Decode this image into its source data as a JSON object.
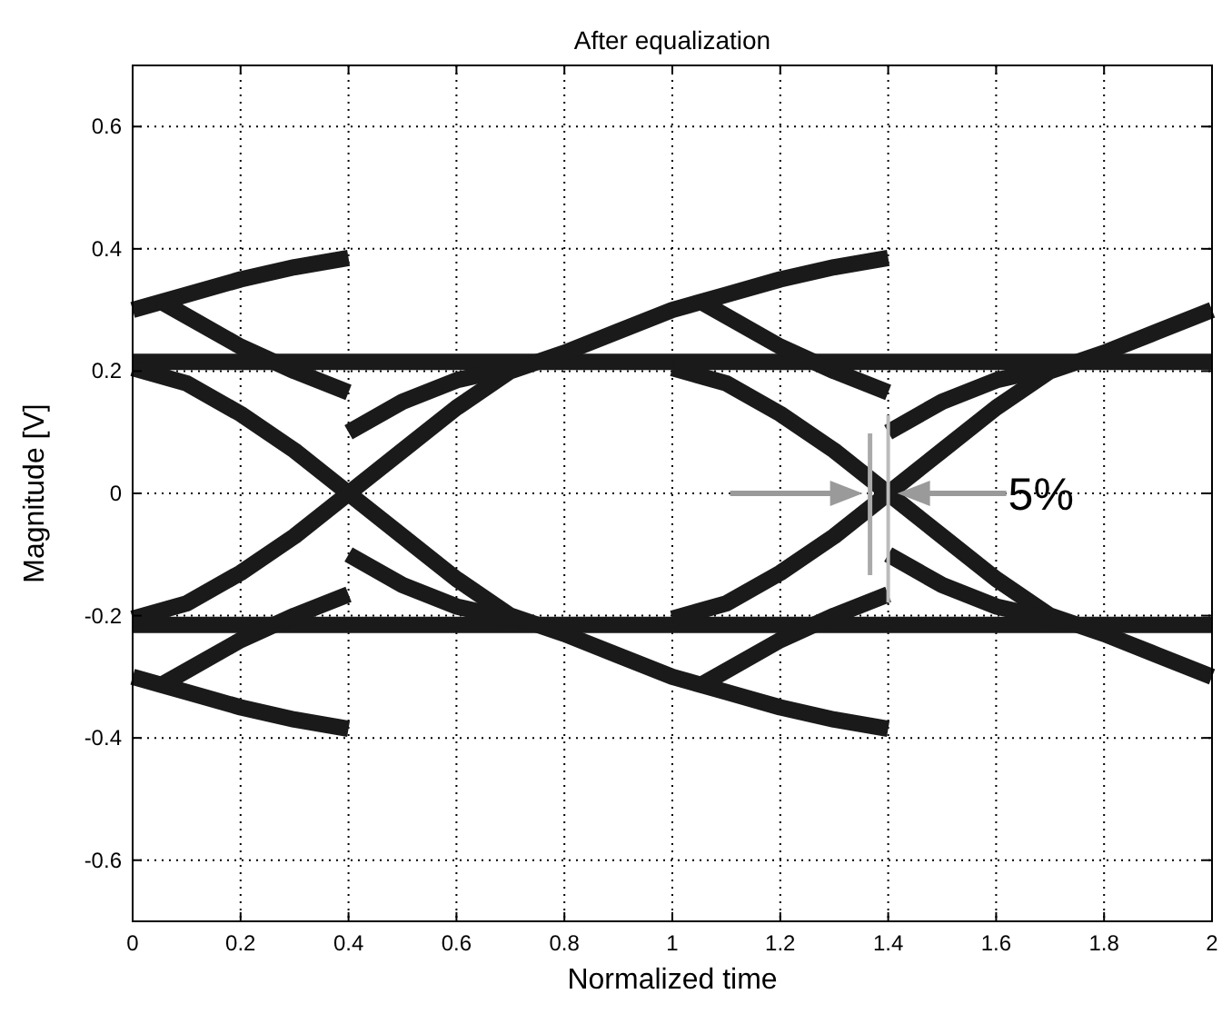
{
  "chart_data": {
    "type": "line",
    "title": "After equalization",
    "xlabel": "Normalized time",
    "ylabel": "Magnitude [V]",
    "xlim": [
      0,
      2
    ],
    "xticks": [
      0,
      0.2,
      0.4,
      0.6,
      0.8,
      1,
      1.2,
      1.4,
      1.6,
      1.8,
      2
    ],
    "ylim": [
      -0.7,
      0.7
    ],
    "yticks": [
      -0.6,
      -0.4,
      -0.2,
      0,
      0.2,
      0.4,
      0.6
    ],
    "grid": true,
    "line_style": "solid",
    "marker": "none",
    "annotations": [
      {
        "text": "5%",
        "x": 1.4,
        "y": 0
      }
    ],
    "series": [
      {
        "color": "#1a1a1a",
        "x": [
          0,
          2
        ],
        "values": [
          0.215,
          0.215
        ]
      },
      {
        "color": "#1a1a1a",
        "x": [
          0,
          2
        ],
        "values": [
          -0.215,
          -0.215
        ]
      },
      {
        "color": "#1a1a1a",
        "x": [
          0,
          0.1,
          0.2,
          0.3,
          0.4
        ],
        "values": [
          0.3,
          0.325,
          0.35,
          0.37,
          0.385
        ]
      },
      {
        "color": "#1a1a1a",
        "x": [
          0,
          0.1,
          0.2,
          0.3,
          0.4
        ],
        "values": [
          -0.3,
          -0.325,
          -0.35,
          -0.37,
          -0.385
        ]
      },
      {
        "color": "#1a1a1a",
        "x": [
          0,
          0.1,
          0.2,
          0.3,
          0.4,
          0.5,
          0.6,
          0.7,
          0.8,
          0.9,
          1,
          1.1,
          1.2,
          1.3,
          1.4
        ],
        "values": [
          0.205,
          0.18,
          0.13,
          0.07,
          0,
          -0.07,
          -0.14,
          -0.2,
          -0.23,
          -0.265,
          -0.3,
          -0.325,
          -0.35,
          -0.37,
          -0.385
        ]
      },
      {
        "color": "#1a1a1a",
        "x": [
          0,
          0.1,
          0.2,
          0.3,
          0.4,
          0.5,
          0.6,
          0.7,
          0.8,
          0.9,
          1,
          1.1,
          1.2,
          1.3,
          1.4
        ],
        "values": [
          -0.205,
          -0.18,
          -0.13,
          -0.07,
          0,
          0.07,
          0.14,
          0.2,
          0.23,
          0.265,
          0.3,
          0.325,
          0.35,
          0.37,
          0.385
        ]
      },
      {
        "color": "#1a1a1a",
        "x": [
          1,
          1.1,
          1.2,
          1.3,
          1.4,
          1.5,
          1.6,
          1.7,
          1.8,
          1.9,
          2
        ],
        "values": [
          0.205,
          0.18,
          0.13,
          0.07,
          0,
          -0.07,
          -0.14,
          -0.2,
          -0.23,
          -0.265,
          -0.3
        ]
      },
      {
        "color": "#1a1a1a",
        "x": [
          1,
          1.1,
          1.2,
          1.3,
          1.4,
          1.5,
          1.6,
          1.7,
          1.8,
          1.9,
          2
        ],
        "values": [
          -0.205,
          -0.18,
          -0.13,
          -0.07,
          0,
          0.07,
          0.14,
          0.2,
          0.23,
          0.265,
          0.3
        ]
      },
      {
        "color": "#1a1a1a",
        "x": [
          0.05,
          0.1,
          0.2,
          0.3,
          0.4
        ],
        "values": [
          0.315,
          0.29,
          0.24,
          0.2,
          0.165
        ]
      },
      {
        "color": "#1a1a1a",
        "x": [
          1.05,
          1.1,
          1.2,
          1.3,
          1.4
        ],
        "values": [
          0.315,
          0.29,
          0.24,
          0.2,
          0.165
        ]
      },
      {
        "color": "#1a1a1a",
        "x": [
          0.05,
          0.1,
          0.2,
          0.3,
          0.4
        ],
        "values": [
          -0.315,
          -0.29,
          -0.24,
          -0.2,
          -0.165
        ]
      },
      {
        "color": "#1a1a1a",
        "x": [
          1.05,
          1.1,
          1.2,
          1.3,
          1.4
        ],
        "values": [
          -0.315,
          -0.29,
          -0.24,
          -0.2,
          -0.165
        ]
      },
      {
        "color": "#1a1a1a",
        "x": [
          0.4,
          0.5,
          0.6,
          0.7
        ],
        "values": [
          0.1,
          0.15,
          0.185,
          0.205
        ]
      },
      {
        "color": "#1a1a1a",
        "x": [
          1.4,
          1.5,
          1.6,
          1.7
        ],
        "values": [
          0.1,
          0.15,
          0.185,
          0.205
        ]
      },
      {
        "color": "#1a1a1a",
        "x": [
          0.4,
          0.5,
          0.6,
          0.7
        ],
        "values": [
          -0.1,
          -0.15,
          -0.185,
          -0.205
        ]
      },
      {
        "color": "#1a1a1a",
        "x": [
          1.4,
          1.5,
          1.6,
          1.7
        ],
        "values": [
          -0.1,
          -0.15,
          -0.185,
          -0.205
        ]
      }
    ]
  }
}
